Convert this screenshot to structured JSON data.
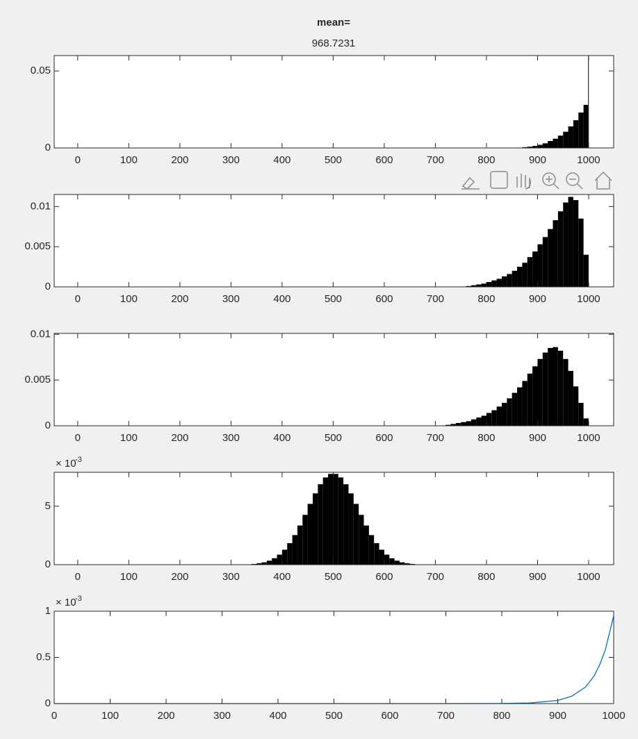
{
  "chart_data": [
    {
      "type": "histogram",
      "title": "mean=",
      "subtitle": "968.7231",
      "bins": [
        870,
        880,
        890,
        900,
        910,
        920,
        930,
        940,
        950,
        960,
        970,
        980,
        990,
        999,
        1000
      ],
      "values": [
        0.0005,
        0.0008,
        0.0013,
        0.002,
        0.003,
        0.0045,
        0.006,
        0.008,
        0.0105,
        0.014,
        0.018,
        0.023,
        0.028,
        0.06
      ],
      "color": "#000000",
      "xlim": [
        -46,
        1049
      ],
      "xticks": [
        0,
        100,
        200,
        300,
        400,
        500,
        600,
        700,
        800,
        900,
        1000
      ],
      "ylim": [
        0,
        0.06
      ],
      "yticks": [
        0,
        0.05
      ]
    },
    {
      "type": "histogram",
      "bins": [
        760,
        770,
        780,
        790,
        800,
        810,
        820,
        830,
        840,
        850,
        860,
        870,
        880,
        890,
        900,
        910,
        920,
        930,
        940,
        950,
        960,
        970,
        980,
        990,
        1000
      ],
      "values": [
        0.0001,
        0.0002,
        0.0003,
        0.0004,
        0.0006,
        0.0008,
        0.001,
        0.0013,
        0.0016,
        0.002,
        0.0025,
        0.003,
        0.0037,
        0.0044,
        0.0053,
        0.0062,
        0.0072,
        0.0083,
        0.0094,
        0.0105,
        0.0112,
        0.0108,
        0.0085,
        0.004
      ],
      "color": "#000000",
      "xlim": [
        -46,
        1049
      ],
      "xticks": [
        0,
        100,
        200,
        300,
        400,
        500,
        600,
        700,
        800,
        900,
        1000
      ],
      "ylim": [
        0,
        0.0115
      ],
      "yticks": [
        0,
        0.005,
        0.01
      ]
    },
    {
      "type": "histogram",
      "bins": [
        720,
        730,
        740,
        750,
        760,
        770,
        780,
        790,
        800,
        810,
        820,
        830,
        840,
        850,
        860,
        870,
        880,
        890,
        900,
        910,
        920,
        930,
        940,
        950,
        960,
        970,
        980,
        990,
        1000
      ],
      "values": [
        0.0001,
        0.0002,
        0.0003,
        0.0004,
        0.0005,
        0.0007,
        0.0009,
        0.0011,
        0.0014,
        0.0017,
        0.0021,
        0.0025,
        0.003,
        0.0036,
        0.0042,
        0.0049,
        0.0057,
        0.0065,
        0.0073,
        0.008,
        0.0085,
        0.0086,
        0.0082,
        0.0073,
        0.006,
        0.0043,
        0.0025,
        0.0008
      ],
      "color": "#000000",
      "xlim": [
        -46,
        1049
      ],
      "xticks": [
        0,
        100,
        200,
        300,
        400,
        500,
        600,
        700,
        800,
        900,
        1000
      ],
      "ylim": [
        0,
        0.0101
      ],
      "yticks": [
        0,
        0.005,
        0.01
      ]
    },
    {
      "type": "histogram",
      "bins": [
        340,
        350,
        360,
        370,
        380,
        390,
        400,
        410,
        420,
        430,
        440,
        450,
        460,
        470,
        480,
        490,
        500,
        510,
        520,
        530,
        540,
        550,
        560,
        570,
        580,
        590,
        600,
        610,
        620,
        630,
        640,
        650,
        660
      ],
      "values": [
        6e-05,
        0.00012,
        0.0002,
        0.00034,
        0.00055,
        0.00086,
        0.00128,
        0.00184,
        0.00253,
        0.00335,
        0.00426,
        0.0052,
        0.0061,
        0.00688,
        0.00746,
        0.00776,
        0.00776,
        0.00746,
        0.00688,
        0.0061,
        0.0052,
        0.00426,
        0.00335,
        0.00253,
        0.00184,
        0.00128,
        0.00086,
        0.00055,
        0.00034,
        0.0002,
        0.00012,
        6e-05
      ],
      "color": "#000000",
      "xlim": [
        -46,
        1049
      ],
      "xticks": [
        0,
        100,
        200,
        300,
        400,
        500,
        600,
        700,
        800,
        900,
        1000
      ],
      "ylim": [
        0,
        0.0079
      ],
      "yticks": [
        0,
        {
          "value": 0.005,
          "label": "5"
        }
      ],
      "exponent": {
        "base": "× 10",
        "power": "-3"
      }
    },
    {
      "type": "line",
      "x": [
        0,
        100,
        200,
        300,
        400,
        500,
        600,
        700,
        800,
        850,
        900,
        925,
        950,
        965,
        975,
        985,
        1000
      ],
      "values": [
        0,
        0,
        0,
        0,
        0,
        0,
        0,
        0,
        1e-06,
        6e-06,
        3.4e-05,
        8e-05,
        0.00018,
        0.0003,
        0.00042,
        0.00058,
        0.00095
      ],
      "color": "#0072bd",
      "xlim": [
        0,
        1000
      ],
      "xticks": [
        0,
        100,
        200,
        300,
        400,
        500,
        600,
        700,
        800,
        900,
        1000
      ],
      "ylim": [
        0,
        0.001
      ],
      "yticks": [
        0,
        {
          "value": 0.0005,
          "label": "0.5"
        },
        {
          "value": 0.001,
          "label": "1"
        }
      ],
      "exponent": {
        "base": "× 10",
        "power": "-3"
      }
    }
  ]
}
